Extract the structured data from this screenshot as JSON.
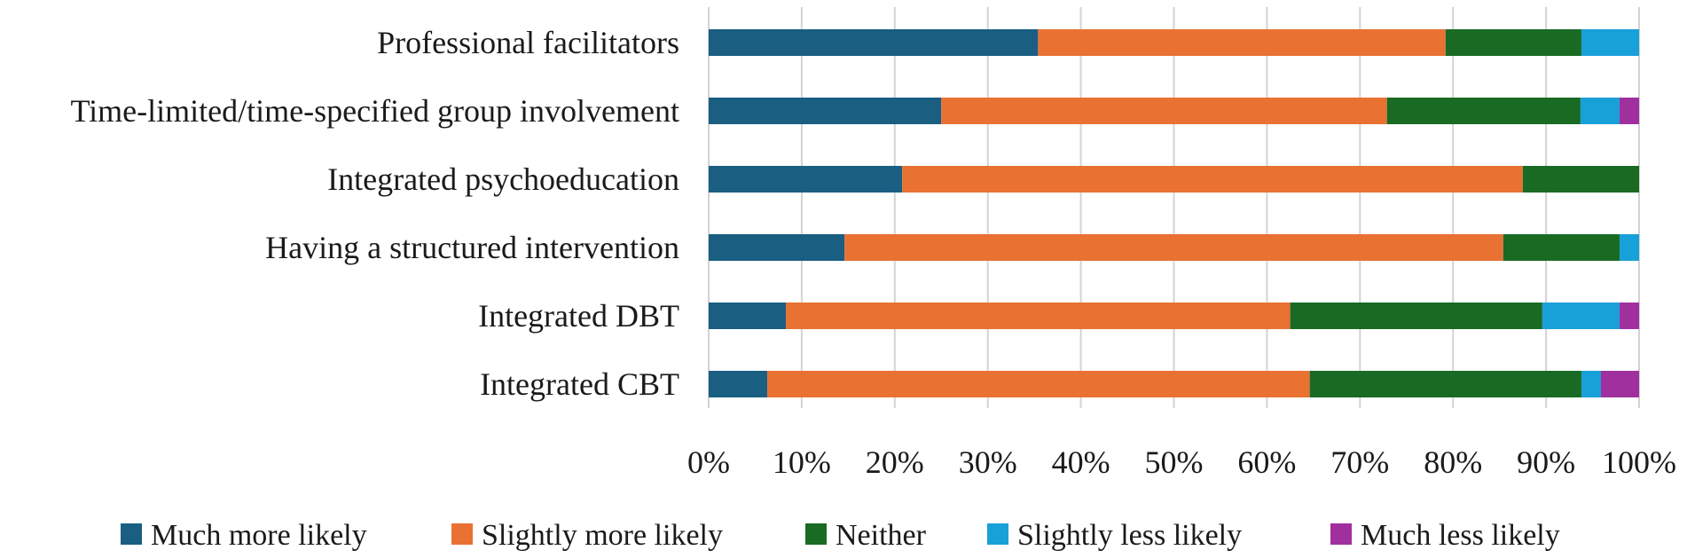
{
  "chart_data": {
    "type": "bar",
    "orientation": "horizontal",
    "stacked": true,
    "normalized": true,
    "categories": [
      "Professional facilitators",
      "Time-limited/time-specified group involvement",
      "Integrated psychoeducation",
      "Having a structured intervention",
      "Integrated DBT",
      "Integrated CBT"
    ],
    "series": [
      {
        "name": "Much more likely",
        "color": "#1a5e82",
        "values": [
          35.4,
          25.0,
          20.8,
          14.6,
          8.3,
          6.3
        ]
      },
      {
        "name": "Slightly more likely",
        "color": "#e97132",
        "values": [
          43.8,
          47.9,
          66.7,
          70.8,
          54.2,
          58.3
        ]
      },
      {
        "name": "Neither",
        "color": "#196b24",
        "values": [
          14.6,
          20.8,
          12.5,
          12.5,
          27.1,
          29.2
        ]
      },
      {
        "name": "Slightly less likely",
        "color": "#18a0d8",
        "values": [
          6.2,
          4.2,
          0,
          2.1,
          8.3,
          2.1
        ]
      },
      {
        "name": "Much less likely",
        "color": "#a0309e",
        "values": [
          0,
          2.1,
          0,
          0,
          2.1,
          4.1
        ]
      }
    ],
    "x_ticks": [
      "0%",
      "10%",
      "20%",
      "30%",
      "40%",
      "50%",
      "60%",
      "70%",
      "80%",
      "90%",
      "100%"
    ],
    "xlim": [
      0,
      100
    ],
    "grid": true,
    "legend_position": "bottom",
    "title": "",
    "xlabel": "",
    "ylabel": ""
  }
}
